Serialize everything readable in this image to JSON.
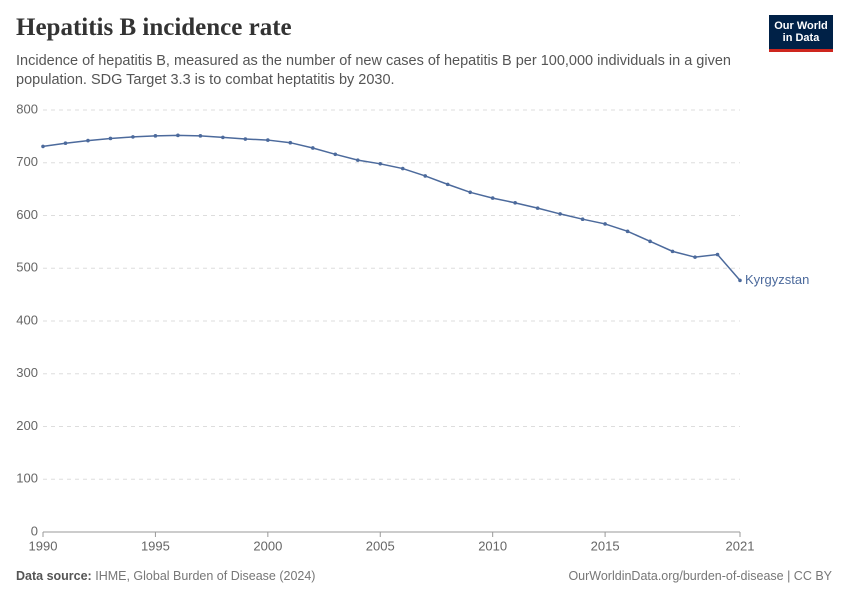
{
  "chart_data": {
    "type": "line",
    "title": "Hepatitis B incidence rate",
    "subtitle": "Incidence of hepatitis B, measured as the number of new cases of hepatitis B per 100,000 individuals in a given population. SDG Target 3.3 is to combat heptatitis by 2030.",
    "logo": [
      "Our World",
      "in Data"
    ],
    "source_label": "Data source:",
    "source": "IHME, Global Burden of Disease (2024)",
    "footer_right": "OurWorldinData.org/burden-of-disease | CC BY",
    "x": [
      1990,
      1991,
      1992,
      1993,
      1994,
      1995,
      1996,
      1997,
      1998,
      1999,
      2000,
      2001,
      2002,
      2003,
      2004,
      2005,
      2006,
      2007,
      2008,
      2009,
      2010,
      2011,
      2012,
      2013,
      2014,
      2015,
      2016,
      2017,
      2018,
      2019,
      2020,
      2021
    ],
    "series": [
      {
        "name": "Kyrgyzstan",
        "color": "#4c6a9c",
        "values": [
          731,
          737,
          742,
          746,
          749,
          751,
          752,
          751,
          748,
          745,
          743,
          738,
          728,
          716,
          705,
          698,
          689,
          675,
          659,
          644,
          633,
          624,
          614,
          603,
          593,
          584,
          570,
          551,
          532,
          521,
          526,
          477
        ]
      }
    ],
    "xlim": [
      1990,
      2021
    ],
    "xticks": [
      1990,
      1995,
      2000,
      2005,
      2010,
      2015,
      2021
    ],
    "ylim": [
      0,
      800
    ],
    "yticks": [
      0,
      100,
      200,
      300,
      400,
      500,
      600,
      700,
      800
    ],
    "grid": true
  }
}
